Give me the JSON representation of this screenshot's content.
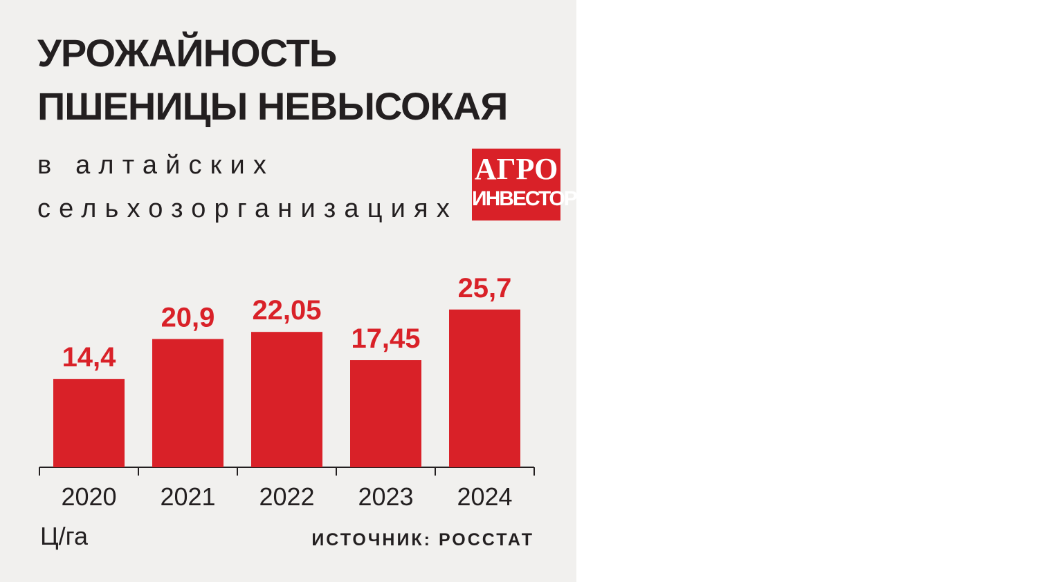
{
  "chart_data": {
    "type": "bar",
    "title": "УРОЖАЙНОСТЬ ПШЕНИЦЫ НЕВЫСОКАЯ",
    "subtitle": "в алтайских сельхозорганизациях",
    "unit": "Ц/га",
    "source": "ИСТОЧНИК: РОССТАТ",
    "categories": [
      "2020",
      "2021",
      "2022",
      "2023",
      "2024"
    ],
    "values": [
      14.4,
      20.9,
      22.05,
      17.45,
      25.7
    ],
    "value_labels": [
      "14,4",
      "20,9",
      "22,05",
      "17,45",
      "25,7"
    ],
    "color": "#d92128"
  },
  "logo": {
    "line1": "АГРО",
    "line2": "ИНВЕСТОР"
  }
}
